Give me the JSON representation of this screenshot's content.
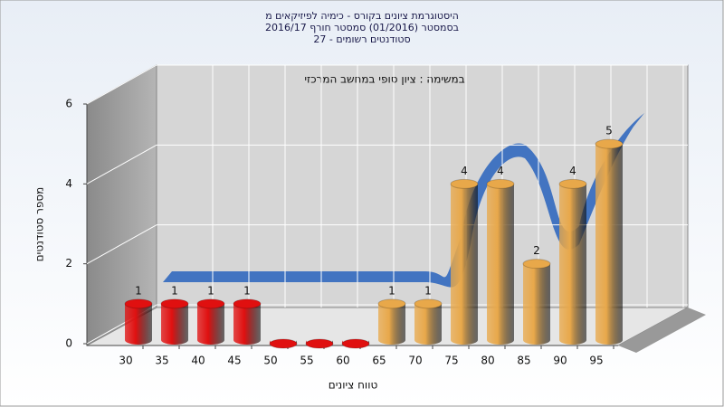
{
  "chart_data": {
    "type": "bar",
    "title": [
      "היסטוגרמת ציונים בקורס - כימיה לפיזיקאים מ",
      "בסמסטר  (01/2016)  סמסטר חורף 2016/17",
      "סטודנטים רשומים - 27"
    ],
    "annotation": "במשימה : ציון סופי במחשב המרכזי",
    "x_label": "טווח ציונים",
    "y_label": "מספר סטודנטים",
    "categories": [
      "30",
      "35",
      "40",
      "45",
      "50",
      "55",
      "60",
      "65",
      "70",
      "75",
      "80",
      "85",
      "90",
      "95"
    ],
    "values": [
      1,
      1,
      1,
      1,
      0,
      0,
      0,
      1,
      1,
      4,
      4,
      2,
      4,
      5
    ],
    "bar_colors": [
      "#e01010",
      "#e01010",
      "#e01010",
      "#e01010",
      "#e01010",
      "#e01010",
      "#e01010",
      "#e8a84a",
      "#e8a84a",
      "#e8a84a",
      "#e8a84a",
      "#e8a84a",
      "#e8a84a",
      "#e8a84a"
    ],
    "ylim": [
      0,
      6
    ],
    "yticks": [
      0,
      2,
      4,
      6
    ],
    "grid": true
  }
}
